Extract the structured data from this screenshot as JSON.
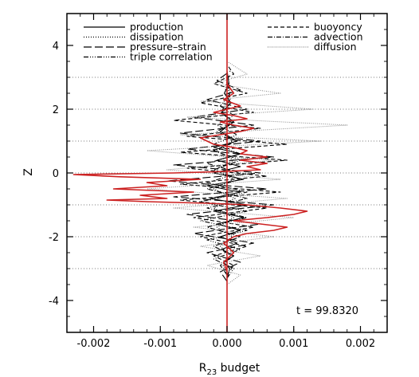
{
  "chart_data": {
    "type": "line",
    "title": "",
    "xlabel_main": "R",
    "xlabel_sub": "23",
    "xlabel_rest": " budget",
    "ylabel": "Z",
    "xlim": [
      -0.0024,
      0.0024
    ],
    "ylim": [
      -5,
      5
    ],
    "x_ticks": [
      {
        "value": -0.002,
        "label": "-0.002"
      },
      {
        "value": -0.001,
        "label": "-0.001"
      },
      {
        "value": 0.0,
        "label": "0.000"
      },
      {
        "value": 0.001,
        "label": "0.001"
      },
      {
        "value": 0.002,
        "label": "0.002"
      }
    ],
    "y_ticks": [
      {
        "value": -4,
        "label": "-4"
      },
      {
        "value": -2,
        "label": "-2"
      },
      {
        "value": 0,
        "label": "0"
      },
      {
        "value": 2,
        "label": "2"
      },
      {
        "value": 4,
        "label": "4"
      }
    ],
    "reference_lines_z": [
      -3,
      -2,
      -1,
      0,
      1,
      2,
      3
    ],
    "annotation": "t = 99.8320",
    "legend_left": [
      {
        "label": "production",
        "style": "solid"
      },
      {
        "label": "dissipation",
        "style": "dotted"
      },
      {
        "label": "pressure–strain",
        "style": "longdash"
      },
      {
        "label": "triple correlation",
        "style": "dashdotdotdot"
      }
    ],
    "legend_right": [
      {
        "label": "buoyoncy",
        "style": "dashed"
      },
      {
        "label": "advection",
        "style": "dashdot"
      },
      {
        "label": "diffusion",
        "style": "finedotted"
      }
    ],
    "total_color": "#cc2222",
    "series": [
      {
        "name": "production",
        "style": "solid",
        "points": [
          [
            0.0,
            -3.3
          ],
          [
            4e-05,
            -3.0
          ],
          [
            -5e-05,
            -2.8
          ],
          [
            0.0001,
            -2.6
          ],
          [
            -8e-05,
            -2.4
          ],
          [
            0.00015,
            -2.2
          ],
          [
            -0.0001,
            -2.0
          ],
          [
            0.0002,
            -1.8
          ],
          [
            -0.00015,
            -1.6
          ],
          [
            0.00025,
            -1.4
          ],
          [
            -0.0002,
            -1.2
          ],
          [
            0.0003,
            -1.0
          ],
          [
            -0.00025,
            -0.8
          ],
          [
            0.0002,
            -0.6
          ],
          [
            -0.0003,
            -0.4
          ],
          [
            0.00025,
            -0.2
          ],
          [
            -0.0002,
            0.0
          ],
          [
            0.0002,
            0.2
          ],
          [
            -0.00015,
            0.4
          ],
          [
            0.0002,
            0.6
          ],
          [
            -0.0002,
            0.8
          ],
          [
            0.00015,
            1.0
          ],
          [
            -0.0001,
            1.3
          ],
          [
            0.0001,
            1.6
          ],
          [
            -8e-05,
            1.9
          ],
          [
            6e-05,
            2.2
          ],
          [
            -4e-05,
            2.5
          ],
          [
            3e-05,
            2.8
          ],
          [
            0.0,
            3.2
          ]
        ]
      },
      {
        "name": "dissipation",
        "style": "dotted",
        "points": [
          [
            0.0,
            -3.2
          ],
          [
            -6e-05,
            -2.9
          ],
          [
            5e-05,
            -2.6
          ],
          [
            -0.0001,
            -2.3
          ],
          [
            8e-05,
            -2.0
          ],
          [
            -0.00015,
            -1.7
          ],
          [
            0.0001,
            -1.4
          ],
          [
            -0.0002,
            -1.1
          ],
          [
            0.00012,
            -0.8
          ],
          [
            -0.0002,
            -0.5
          ],
          [
            0.0001,
            -0.2
          ],
          [
            -0.00018,
            0.1
          ],
          [
            0.0001,
            0.4
          ],
          [
            -0.00015,
            0.7
          ],
          [
            8e-05,
            1.0
          ],
          [
            -0.0001,
            1.3
          ],
          [
            6e-05,
            1.6
          ],
          [
            -6e-05,
            1.9
          ],
          [
            4e-05,
            2.2
          ],
          [
            -3e-05,
            2.5
          ],
          [
            0.0,
            2.9
          ]
        ]
      },
      {
        "name": "pressure–strain",
        "style": "longdash",
        "points": [
          [
            0.0,
            -3.4
          ],
          [
            -0.0001,
            -3.1
          ],
          [
            0.0002,
            -2.8
          ],
          [
            -0.0003,
            -2.5
          ],
          [
            0.0004,
            -2.2
          ],
          [
            -0.0005,
            -1.9
          ],
          [
            0.0005,
            -1.6
          ],
          [
            -0.0006,
            -1.3
          ],
          [
            0.0007,
            -1.0
          ],
          [
            -0.0008,
            -0.75
          ],
          [
            0.0006,
            -0.5
          ],
          [
            -0.0009,
            -0.25
          ],
          [
            0.0005,
            0.0
          ],
          [
            -0.0008,
            0.25
          ],
          [
            0.0007,
            0.5
          ],
          [
            -0.0006,
            0.75
          ],
          [
            0.0005,
            1.0
          ],
          [
            -0.0007,
            1.25
          ],
          [
            0.0004,
            1.5
          ],
          [
            -0.0005,
            1.75
          ],
          [
            0.0003,
            2.0
          ],
          [
            -0.0003,
            2.3
          ],
          [
            0.0002,
            2.6
          ],
          [
            -0.00015,
            2.9
          ],
          [
            5e-05,
            3.2
          ]
        ]
      },
      {
        "name": "triple correlation",
        "style": "dashdotdotdot",
        "points": [
          [
            0.0,
            -3.3
          ],
          [
            0.0001,
            -3.0
          ],
          [
            -0.0002,
            -2.7
          ],
          [
            0.0002,
            -2.4
          ],
          [
            -0.0003,
            -2.1
          ],
          [
            0.0003,
            -1.8
          ],
          [
            -0.0004,
            -1.5
          ],
          [
            0.0003,
            -1.2
          ],
          [
            -0.0004,
            -0.9
          ],
          [
            0.0003,
            -0.6
          ],
          [
            -0.0003,
            -0.3
          ],
          [
            0.0002,
            0.0
          ],
          [
            -0.0003,
            0.3
          ],
          [
            0.0002,
            0.6
          ],
          [
            -0.0002,
            0.9
          ],
          [
            0.00015,
            1.2
          ],
          [
            -0.00015,
            1.5
          ],
          [
            0.0001,
            1.8
          ],
          [
            -0.0001,
            2.1
          ],
          [
            5e-05,
            2.5
          ],
          [
            0.0,
            2.9
          ]
        ]
      },
      {
        "name": "buoyoncy",
        "style": "dashed",
        "points": [
          [
            0.0,
            -3.2
          ],
          [
            0.0001,
            -2.9
          ],
          [
            -0.0002,
            -2.6
          ],
          [
            0.0003,
            -2.3
          ],
          [
            -0.0004,
            -2.0
          ],
          [
            0.0004,
            -1.7
          ],
          [
            -0.0005,
            -1.4
          ],
          [
            0.0006,
            -1.1
          ],
          [
            -0.0007,
            -0.85
          ],
          [
            0.0008,
            -0.6
          ],
          [
            -0.0007,
            -0.35
          ],
          [
            0.0006,
            -0.1
          ],
          [
            -0.0006,
            0.15
          ],
          [
            0.0009,
            0.4
          ],
          [
            -0.0007,
            0.65
          ],
          [
            0.0009,
            0.9
          ],
          [
            -0.0006,
            1.15
          ],
          [
            0.0005,
            1.4
          ],
          [
            -0.0008,
            1.65
          ],
          [
            0.0004,
            1.9
          ],
          [
            -0.0004,
            2.2
          ],
          [
            0.0003,
            2.5
          ],
          [
            -0.0002,
            2.8
          ],
          [
            0.0001,
            3.1
          ],
          [
            0.0,
            3.4
          ]
        ]
      },
      {
        "name": "advection",
        "style": "dashdot",
        "points": [
          [
            0.0,
            -3.2
          ],
          [
            -0.0001,
            -2.9
          ],
          [
            0.0001,
            -2.6
          ],
          [
            -0.0002,
            -2.3
          ],
          [
            0.0002,
            -2.0
          ],
          [
            -0.0003,
            -1.7
          ],
          [
            0.0003,
            -1.4
          ],
          [
            -0.0003,
            -1.1
          ],
          [
            0.0003,
            -0.8
          ],
          [
            -0.0003,
            -0.5
          ],
          [
            0.0002,
            -0.2
          ],
          [
            -0.0002,
            0.1
          ],
          [
            0.0002,
            0.4
          ],
          [
            -0.0002,
            0.7
          ],
          [
            0.00015,
            1.0
          ],
          [
            -0.00015,
            1.3
          ],
          [
            0.0001,
            1.6
          ],
          [
            -0.0001,
            1.9
          ],
          [
            5e-05,
            2.3
          ],
          [
            0.0,
            2.8
          ]
        ]
      },
      {
        "name": "diffusion",
        "style": "finedotted",
        "points": [
          [
            0.0,
            -3.5
          ],
          [
            0.0002,
            -3.2
          ],
          [
            -0.0003,
            -2.9
          ],
          [
            0.0005,
            -2.6
          ],
          [
            -0.0004,
            -2.3
          ],
          [
            0.0007,
            -2.0
          ],
          [
            -0.0005,
            -1.7
          ],
          [
            0.001,
            -1.4
          ],
          [
            -0.0008,
            -1.1
          ],
          [
            0.0009,
            -0.8
          ],
          [
            -0.0012,
            -0.5
          ],
          [
            0.0008,
            -0.2
          ],
          [
            -0.0009,
            0.1
          ],
          [
            0.0007,
            0.4
          ],
          [
            -0.0012,
            0.7
          ],
          [
            0.0014,
            1.0
          ],
          [
            -0.0007,
            1.2
          ],
          [
            0.0018,
            1.5
          ],
          [
            -0.0006,
            1.75
          ],
          [
            0.0013,
            2.0
          ],
          [
            -0.0004,
            2.25
          ],
          [
            0.0008,
            2.5
          ],
          [
            -0.0002,
            2.8
          ],
          [
            0.0003,
            3.1
          ],
          [
            0.0,
            3.5
          ]
        ]
      },
      {
        "name": "total",
        "style": "red",
        "points": [
          [
            0.0,
            -3.1
          ],
          [
            -5e-05,
            -2.8
          ],
          [
            0.0001,
            -2.5
          ],
          [
            -5e-05,
            -2.2
          ],
          [
            0.0001,
            -2.0
          ],
          [
            0.0003,
            -1.9
          ],
          [
            0.0007,
            -1.8
          ],
          [
            0.0009,
            -1.7
          ],
          [
            0.0005,
            -1.6
          ],
          [
            0.0001,
            -1.5
          ],
          [
            0.0006,
            -1.4
          ],
          [
            0.001,
            -1.3
          ],
          [
            0.0012,
            -1.2
          ],
          [
            0.0008,
            -1.1
          ],
          [
            0.0003,
            -1.0
          ],
          [
            -0.0003,
            -0.95
          ],
          [
            -0.0012,
            -0.9
          ],
          [
            -0.0018,
            -0.85
          ],
          [
            -0.0009,
            -0.8
          ],
          [
            -0.0013,
            -0.7
          ],
          [
            -0.0005,
            -0.6
          ],
          [
            -0.0017,
            -0.5
          ],
          [
            -0.0009,
            -0.4
          ],
          [
            -0.0012,
            -0.3
          ],
          [
            -0.0004,
            -0.2
          ],
          [
            -0.0016,
            -0.12
          ],
          [
            -0.0023,
            -0.05
          ],
          [
            -0.0008,
            0.0
          ],
          [
            0.0,
            0.05
          ],
          [
            0.0005,
            0.1
          ],
          [
            0.0003,
            0.2
          ],
          [
            0.0006,
            0.3
          ],
          [
            0.0002,
            0.4
          ],
          [
            0.0006,
            0.5
          ],
          [
            0.0002,
            0.6
          ],
          [
            0.0003,
            0.7
          ],
          [
            0.0001,
            0.8
          ],
          [
            -0.0002,
            0.9
          ],
          [
            -0.0003,
            1.0
          ],
          [
            -0.0004,
            1.1
          ],
          [
            -0.0001,
            1.2
          ],
          [
            0.0002,
            1.3
          ],
          [
            0.0004,
            1.4
          ],
          [
            0.0001,
            1.5
          ],
          [
            -0.0001,
            1.6
          ],
          [
            0.0003,
            1.7
          ],
          [
            0.0001,
            1.8
          ],
          [
            -0.0002,
            1.9
          ],
          [
            0.0,
            2.0
          ],
          [
            0.0002,
            2.1
          ],
          [
            -5e-05,
            2.3
          ],
          [
            0.0001,
            2.5
          ],
          [
            0.0,
            2.8
          ],
          [
            0.0,
            3.1
          ]
        ]
      }
    ]
  }
}
